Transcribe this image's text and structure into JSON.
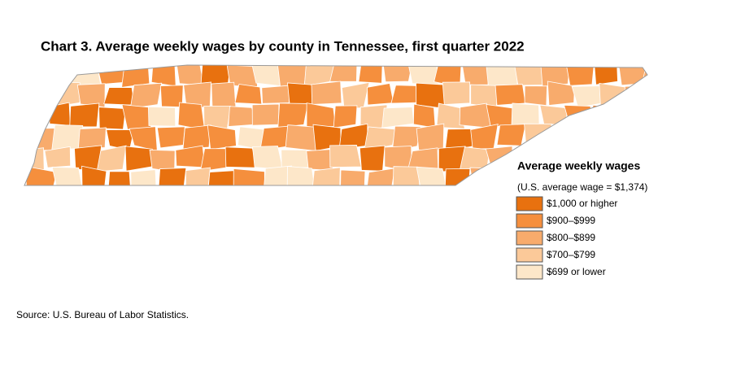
{
  "title": "Chart 3. Average weekly wages by county in Tennessee, first quarter 2022",
  "legend": {
    "title": "Average weekly wages",
    "subtitle": "(U.S. average wage = $1,374)",
    "items": [
      {
        "label": "$1,000 or higher",
        "color": "#e8710f"
      },
      {
        "label": "$900–$999",
        "color": "#f58f3d"
      },
      {
        "label": "$800–$899",
        "color": "#f8ab6c"
      },
      {
        "label": "$700–$799",
        "color": "#fbc999"
      },
      {
        "label": "$699 or lower",
        "color": "#fde7c9"
      }
    ]
  },
  "source": "Source: U.S. Bureau of Labor Statistics."
}
